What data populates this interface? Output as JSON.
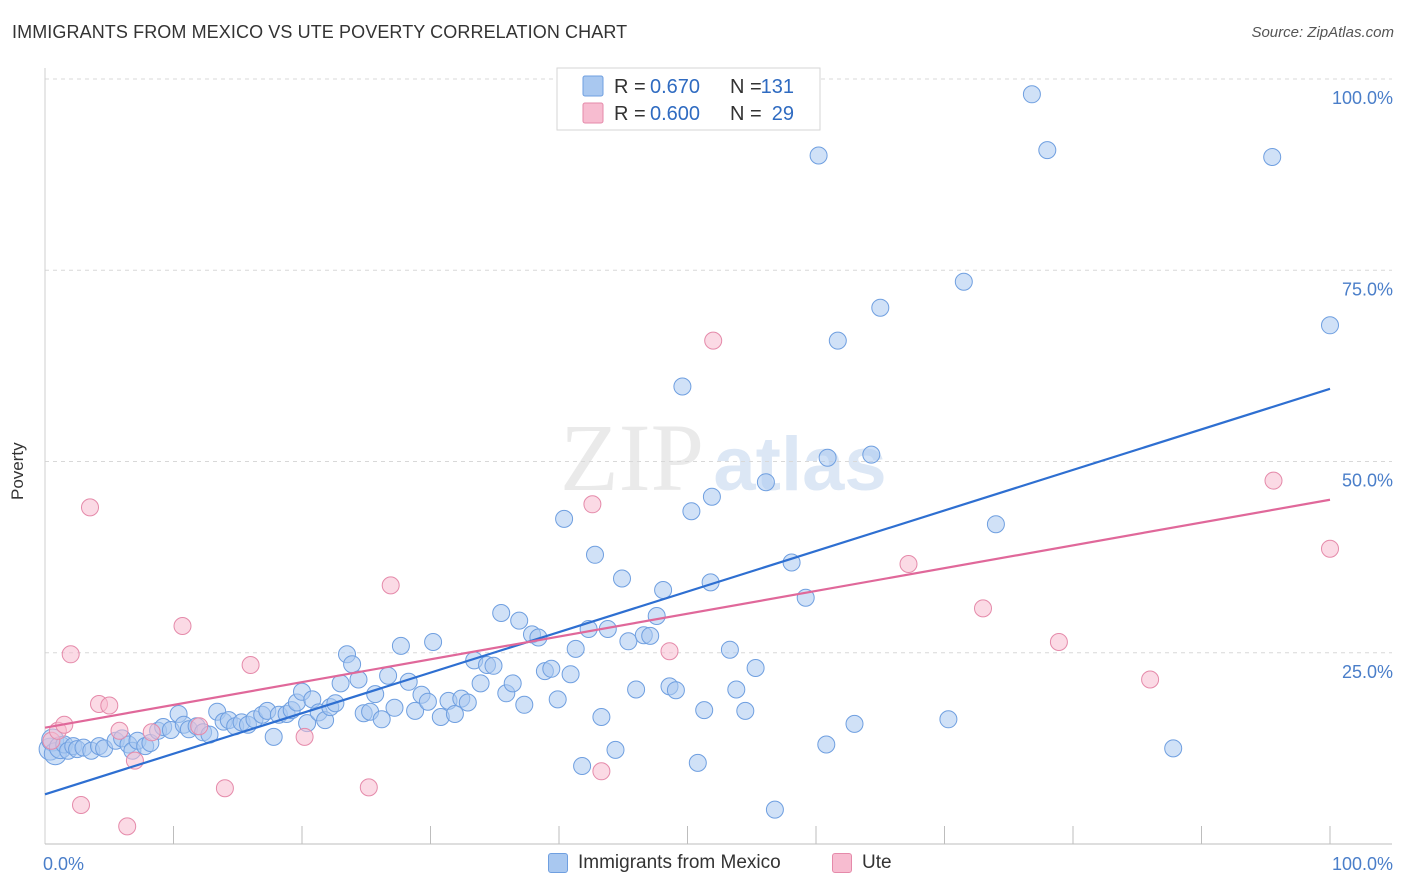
{
  "title": "IMMIGRANTS FROM MEXICO VS UTE POVERTY CORRELATION CHART",
  "source": "Source: ZipAtlas.com",
  "watermark": {
    "zip": "ZIP",
    "atlas": "atlas"
  },
  "chart_data": {
    "type": "scatter",
    "title": "IMMIGRANTS FROM MEXICO VS UTE POVERTY CORRELATION CHART",
    "xlabel": "",
    "ylabel": "Poverty",
    "xlim": [
      0,
      100
    ],
    "ylim": [
      0,
      100
    ],
    "x_tick_labels": [
      "0.0%",
      "100.0%"
    ],
    "y_ticks": [
      {
        "value": 25,
        "label": "25.0%"
      },
      {
        "value": 50,
        "label": "50.0%"
      },
      {
        "value": 75,
        "label": "75.0%"
      },
      {
        "value": 100,
        "label": "100.0%"
      }
    ],
    "grid": "horizontal dashed",
    "legend_position": "top-center",
    "stats": [
      {
        "r_label": "R =",
        "r": "0.670",
        "n_label": "N =",
        "n": "131",
        "color": "#a9c8f0",
        "border": "#6f9fe0"
      },
      {
        "r_label": "R =",
        "r": "0.600",
        "n_label": "N =",
        "n": "29",
        "color": "#f7bcd0",
        "border": "#e58aaa"
      }
    ],
    "series": [
      {
        "name": "Immigrants from Mexico",
        "color": "#a9c8f0",
        "stroke": "#6f9fe0",
        "trend_color": "#2e6fd1",
        "trend": {
          "x0": 0,
          "y0": 6.5,
          "x1": 100,
          "y1": 59.5
        },
        "points": [
          [
            0.4,
            12.4
          ],
          [
            0.6,
            13.6
          ],
          [
            0.8,
            11.8
          ],
          [
            1.2,
            12.6
          ],
          [
            1.5,
            13.0
          ],
          [
            1.8,
            12.2
          ],
          [
            2.2,
            12.8
          ],
          [
            2.5,
            12.4
          ],
          [
            3.0,
            12.6
          ],
          [
            3.6,
            12.2
          ],
          [
            4.2,
            12.8
          ],
          [
            4.6,
            12.5
          ],
          [
            5.5,
            13.5
          ],
          [
            6.0,
            13.8
          ],
          [
            6.5,
            13.0
          ],
          [
            6.8,
            12.2
          ],
          [
            7.2,
            13.5
          ],
          [
            7.8,
            12.8
          ],
          [
            8.2,
            13.2
          ],
          [
            8.8,
            14.8
          ],
          [
            9.2,
            15.3
          ],
          [
            9.8,
            14.9
          ],
          [
            10.4,
            17.0
          ],
          [
            10.8,
            15.6
          ],
          [
            11.2,
            15.0
          ],
          [
            11.8,
            15.4
          ],
          [
            12.3,
            14.6
          ],
          [
            12.8,
            14.3
          ],
          [
            13.4,
            17.3
          ],
          [
            13.9,
            16.0
          ],
          [
            14.3,
            16.2
          ],
          [
            14.8,
            15.4
          ],
          [
            15.3,
            15.9
          ],
          [
            15.8,
            15.6
          ],
          [
            16.3,
            16.3
          ],
          [
            16.9,
            16.9
          ],
          [
            17.3,
            17.4
          ],
          [
            17.8,
            14.0
          ],
          [
            18.2,
            16.9
          ],
          [
            18.8,
            17.0
          ],
          [
            19.2,
            17.5
          ],
          [
            19.6,
            18.5
          ],
          [
            20.0,
            19.9
          ],
          [
            20.4,
            15.8
          ],
          [
            20.8,
            18.9
          ],
          [
            21.3,
            17.2
          ],
          [
            21.8,
            16.2
          ],
          [
            22.2,
            17.9
          ],
          [
            22.6,
            18.4
          ],
          [
            23.0,
            21.0
          ],
          [
            23.5,
            24.8
          ],
          [
            23.9,
            23.5
          ],
          [
            24.4,
            21.5
          ],
          [
            24.8,
            17.1
          ],
          [
            25.3,
            17.3
          ],
          [
            25.7,
            19.6
          ],
          [
            26.2,
            16.3
          ],
          [
            26.7,
            22.0
          ],
          [
            27.2,
            17.8
          ],
          [
            27.7,
            25.9
          ],
          [
            28.3,
            21.2
          ],
          [
            28.8,
            17.4
          ],
          [
            29.3,
            19.5
          ],
          [
            29.8,
            18.6
          ],
          [
            30.2,
            26.4
          ],
          [
            30.8,
            16.6
          ],
          [
            31.4,
            18.7
          ],
          [
            31.9,
            17.0
          ],
          [
            32.4,
            19.0
          ],
          [
            32.9,
            18.5
          ],
          [
            33.4,
            24.0
          ],
          [
            33.9,
            21.0
          ],
          [
            34.4,
            23.4
          ],
          [
            34.9,
            23.3
          ],
          [
            35.5,
            30.2
          ],
          [
            35.9,
            19.7
          ],
          [
            36.4,
            21.0
          ],
          [
            36.9,
            29.2
          ],
          [
            37.3,
            18.2
          ],
          [
            37.9,
            27.4
          ],
          [
            38.4,
            27.0
          ],
          [
            38.9,
            22.6
          ],
          [
            39.4,
            22.9
          ],
          [
            39.9,
            18.9
          ],
          [
            40.4,
            42.5
          ],
          [
            40.9,
            22.2
          ],
          [
            41.3,
            25.5
          ],
          [
            41.8,
            10.2
          ],
          [
            42.3,
            28.1
          ],
          [
            42.8,
            37.8
          ],
          [
            43.3,
            16.6
          ],
          [
            43.8,
            28.1
          ],
          [
            44.4,
            12.3
          ],
          [
            44.9,
            34.7
          ],
          [
            45.4,
            26.5
          ],
          [
            46.0,
            20.2
          ],
          [
            46.6,
            27.3
          ],
          [
            47.1,
            27.2
          ],
          [
            47.6,
            29.8
          ],
          [
            48.1,
            33.2
          ],
          [
            48.6,
            20.6
          ],
          [
            49.1,
            20.1
          ],
          [
            49.6,
            59.8
          ],
          [
            50.3,
            43.5
          ],
          [
            50.8,
            10.6
          ],
          [
            51.3,
            17.5
          ],
          [
            51.8,
            34.2
          ],
          [
            51.9,
            45.4
          ],
          [
            53.3,
            25.4
          ],
          [
            53.8,
            20.2
          ],
          [
            54.5,
            17.4
          ],
          [
            55.3,
            23.0
          ],
          [
            56.1,
            47.3
          ],
          [
            56.8,
            4.5
          ],
          [
            58.1,
            36.8
          ],
          [
            59.2,
            32.2
          ],
          [
            60.2,
            90.0
          ],
          [
            60.8,
            13.0
          ],
          [
            60.9,
            50.5
          ],
          [
            61.7,
            65.8
          ],
          [
            63.0,
            15.7
          ],
          [
            64.3,
            50.9
          ],
          [
            65.0,
            70.1
          ],
          [
            70.3,
            16.3
          ],
          [
            71.5,
            73.5
          ],
          [
            74.0,
            41.8
          ],
          [
            76.8,
            98.0
          ],
          [
            78.0,
            90.7
          ],
          [
            87.8,
            12.5
          ],
          [
            95.5,
            89.8
          ],
          [
            100.0,
            67.8
          ]
        ]
      },
      {
        "name": "Ute",
        "color": "#f7bcd0",
        "stroke": "#e58aaa",
        "trend_color": "#e0689a",
        "trend": {
          "x0": 0,
          "y0": 15.2,
          "x1": 100,
          "y1": 45.0
        },
        "points": [
          [
            0.5,
            13.5
          ],
          [
            1.0,
            14.8
          ],
          [
            1.5,
            15.6
          ],
          [
            2.0,
            24.8
          ],
          [
            2.8,
            5.1
          ],
          [
            3.5,
            44.0
          ],
          [
            4.2,
            18.3
          ],
          [
            5.0,
            18.1
          ],
          [
            5.8,
            14.8
          ],
          [
            6.4,
            2.3
          ],
          [
            7.0,
            10.9
          ],
          [
            8.3,
            14.6
          ],
          [
            10.7,
            28.5
          ],
          [
            12.0,
            15.4
          ],
          [
            14.0,
            7.3
          ],
          [
            16.0,
            23.4
          ],
          [
            20.2,
            14.0
          ],
          [
            25.2,
            7.4
          ],
          [
            26.9,
            33.8
          ],
          [
            42.6,
            44.4
          ],
          [
            43.3,
            9.5
          ],
          [
            48.6,
            25.2
          ],
          [
            52.0,
            65.8
          ],
          [
            67.2,
            36.6
          ],
          [
            73.0,
            30.8
          ],
          [
            78.9,
            26.4
          ],
          [
            86.0,
            21.5
          ],
          [
            95.6,
            47.5
          ],
          [
            100.0,
            38.6
          ]
        ]
      }
    ]
  }
}
